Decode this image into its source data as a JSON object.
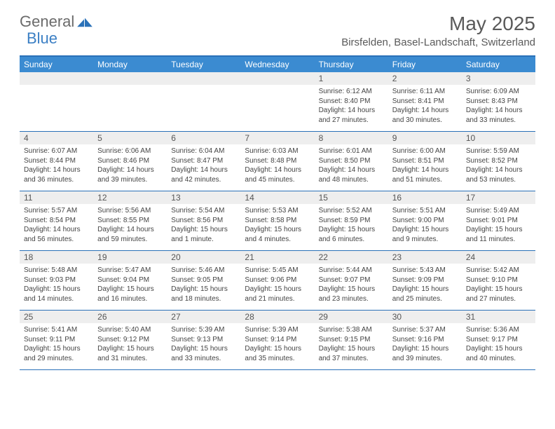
{
  "logo": {
    "general": "General",
    "blue": "Blue"
  },
  "title": "May 2025",
  "location": "Birsfelden, Basel-Landschaft, Switzerland",
  "colors": {
    "header_bg": "#3b8bd1",
    "border": "#2a71b8",
    "daynum_bg": "#eeeeee",
    "text": "#444444",
    "title_text": "#5a5a5a"
  },
  "day_names": [
    "Sunday",
    "Monday",
    "Tuesday",
    "Wednesday",
    "Thursday",
    "Friday",
    "Saturday"
  ],
  "weeks": [
    [
      null,
      null,
      null,
      null,
      {
        "n": "1",
        "sr": "6:12 AM",
        "ss": "8:40 PM",
        "dl": "14 hours and 27 minutes."
      },
      {
        "n": "2",
        "sr": "6:11 AM",
        "ss": "8:41 PM",
        "dl": "14 hours and 30 minutes."
      },
      {
        "n": "3",
        "sr": "6:09 AM",
        "ss": "8:43 PM",
        "dl": "14 hours and 33 minutes."
      }
    ],
    [
      {
        "n": "4",
        "sr": "6:07 AM",
        "ss": "8:44 PM",
        "dl": "14 hours and 36 minutes."
      },
      {
        "n": "5",
        "sr": "6:06 AM",
        "ss": "8:46 PM",
        "dl": "14 hours and 39 minutes."
      },
      {
        "n": "6",
        "sr": "6:04 AM",
        "ss": "8:47 PM",
        "dl": "14 hours and 42 minutes."
      },
      {
        "n": "7",
        "sr": "6:03 AM",
        "ss": "8:48 PM",
        "dl": "14 hours and 45 minutes."
      },
      {
        "n": "8",
        "sr": "6:01 AM",
        "ss": "8:50 PM",
        "dl": "14 hours and 48 minutes."
      },
      {
        "n": "9",
        "sr": "6:00 AM",
        "ss": "8:51 PM",
        "dl": "14 hours and 51 minutes."
      },
      {
        "n": "10",
        "sr": "5:59 AM",
        "ss": "8:52 PM",
        "dl": "14 hours and 53 minutes."
      }
    ],
    [
      {
        "n": "11",
        "sr": "5:57 AM",
        "ss": "8:54 PM",
        "dl": "14 hours and 56 minutes."
      },
      {
        "n": "12",
        "sr": "5:56 AM",
        "ss": "8:55 PM",
        "dl": "14 hours and 59 minutes."
      },
      {
        "n": "13",
        "sr": "5:54 AM",
        "ss": "8:56 PM",
        "dl": "15 hours and 1 minute."
      },
      {
        "n": "14",
        "sr": "5:53 AM",
        "ss": "8:58 PM",
        "dl": "15 hours and 4 minutes."
      },
      {
        "n": "15",
        "sr": "5:52 AM",
        "ss": "8:59 PM",
        "dl": "15 hours and 6 minutes."
      },
      {
        "n": "16",
        "sr": "5:51 AM",
        "ss": "9:00 PM",
        "dl": "15 hours and 9 minutes."
      },
      {
        "n": "17",
        "sr": "5:49 AM",
        "ss": "9:01 PM",
        "dl": "15 hours and 11 minutes."
      }
    ],
    [
      {
        "n": "18",
        "sr": "5:48 AM",
        "ss": "9:03 PM",
        "dl": "15 hours and 14 minutes."
      },
      {
        "n": "19",
        "sr": "5:47 AM",
        "ss": "9:04 PM",
        "dl": "15 hours and 16 minutes."
      },
      {
        "n": "20",
        "sr": "5:46 AM",
        "ss": "9:05 PM",
        "dl": "15 hours and 18 minutes."
      },
      {
        "n": "21",
        "sr": "5:45 AM",
        "ss": "9:06 PM",
        "dl": "15 hours and 21 minutes."
      },
      {
        "n": "22",
        "sr": "5:44 AM",
        "ss": "9:07 PM",
        "dl": "15 hours and 23 minutes."
      },
      {
        "n": "23",
        "sr": "5:43 AM",
        "ss": "9:09 PM",
        "dl": "15 hours and 25 minutes."
      },
      {
        "n": "24",
        "sr": "5:42 AM",
        "ss": "9:10 PM",
        "dl": "15 hours and 27 minutes."
      }
    ],
    [
      {
        "n": "25",
        "sr": "5:41 AM",
        "ss": "9:11 PM",
        "dl": "15 hours and 29 minutes."
      },
      {
        "n": "26",
        "sr": "5:40 AM",
        "ss": "9:12 PM",
        "dl": "15 hours and 31 minutes."
      },
      {
        "n": "27",
        "sr": "5:39 AM",
        "ss": "9:13 PM",
        "dl": "15 hours and 33 minutes."
      },
      {
        "n": "28",
        "sr": "5:39 AM",
        "ss": "9:14 PM",
        "dl": "15 hours and 35 minutes."
      },
      {
        "n": "29",
        "sr": "5:38 AM",
        "ss": "9:15 PM",
        "dl": "15 hours and 37 minutes."
      },
      {
        "n": "30",
        "sr": "5:37 AM",
        "ss": "9:16 PM",
        "dl": "15 hours and 39 minutes."
      },
      {
        "n": "31",
        "sr": "5:36 AM",
        "ss": "9:17 PM",
        "dl": "15 hours and 40 minutes."
      }
    ]
  ],
  "labels": {
    "sunrise": "Sunrise:",
    "sunset": "Sunset:",
    "daylight": "Daylight:"
  }
}
